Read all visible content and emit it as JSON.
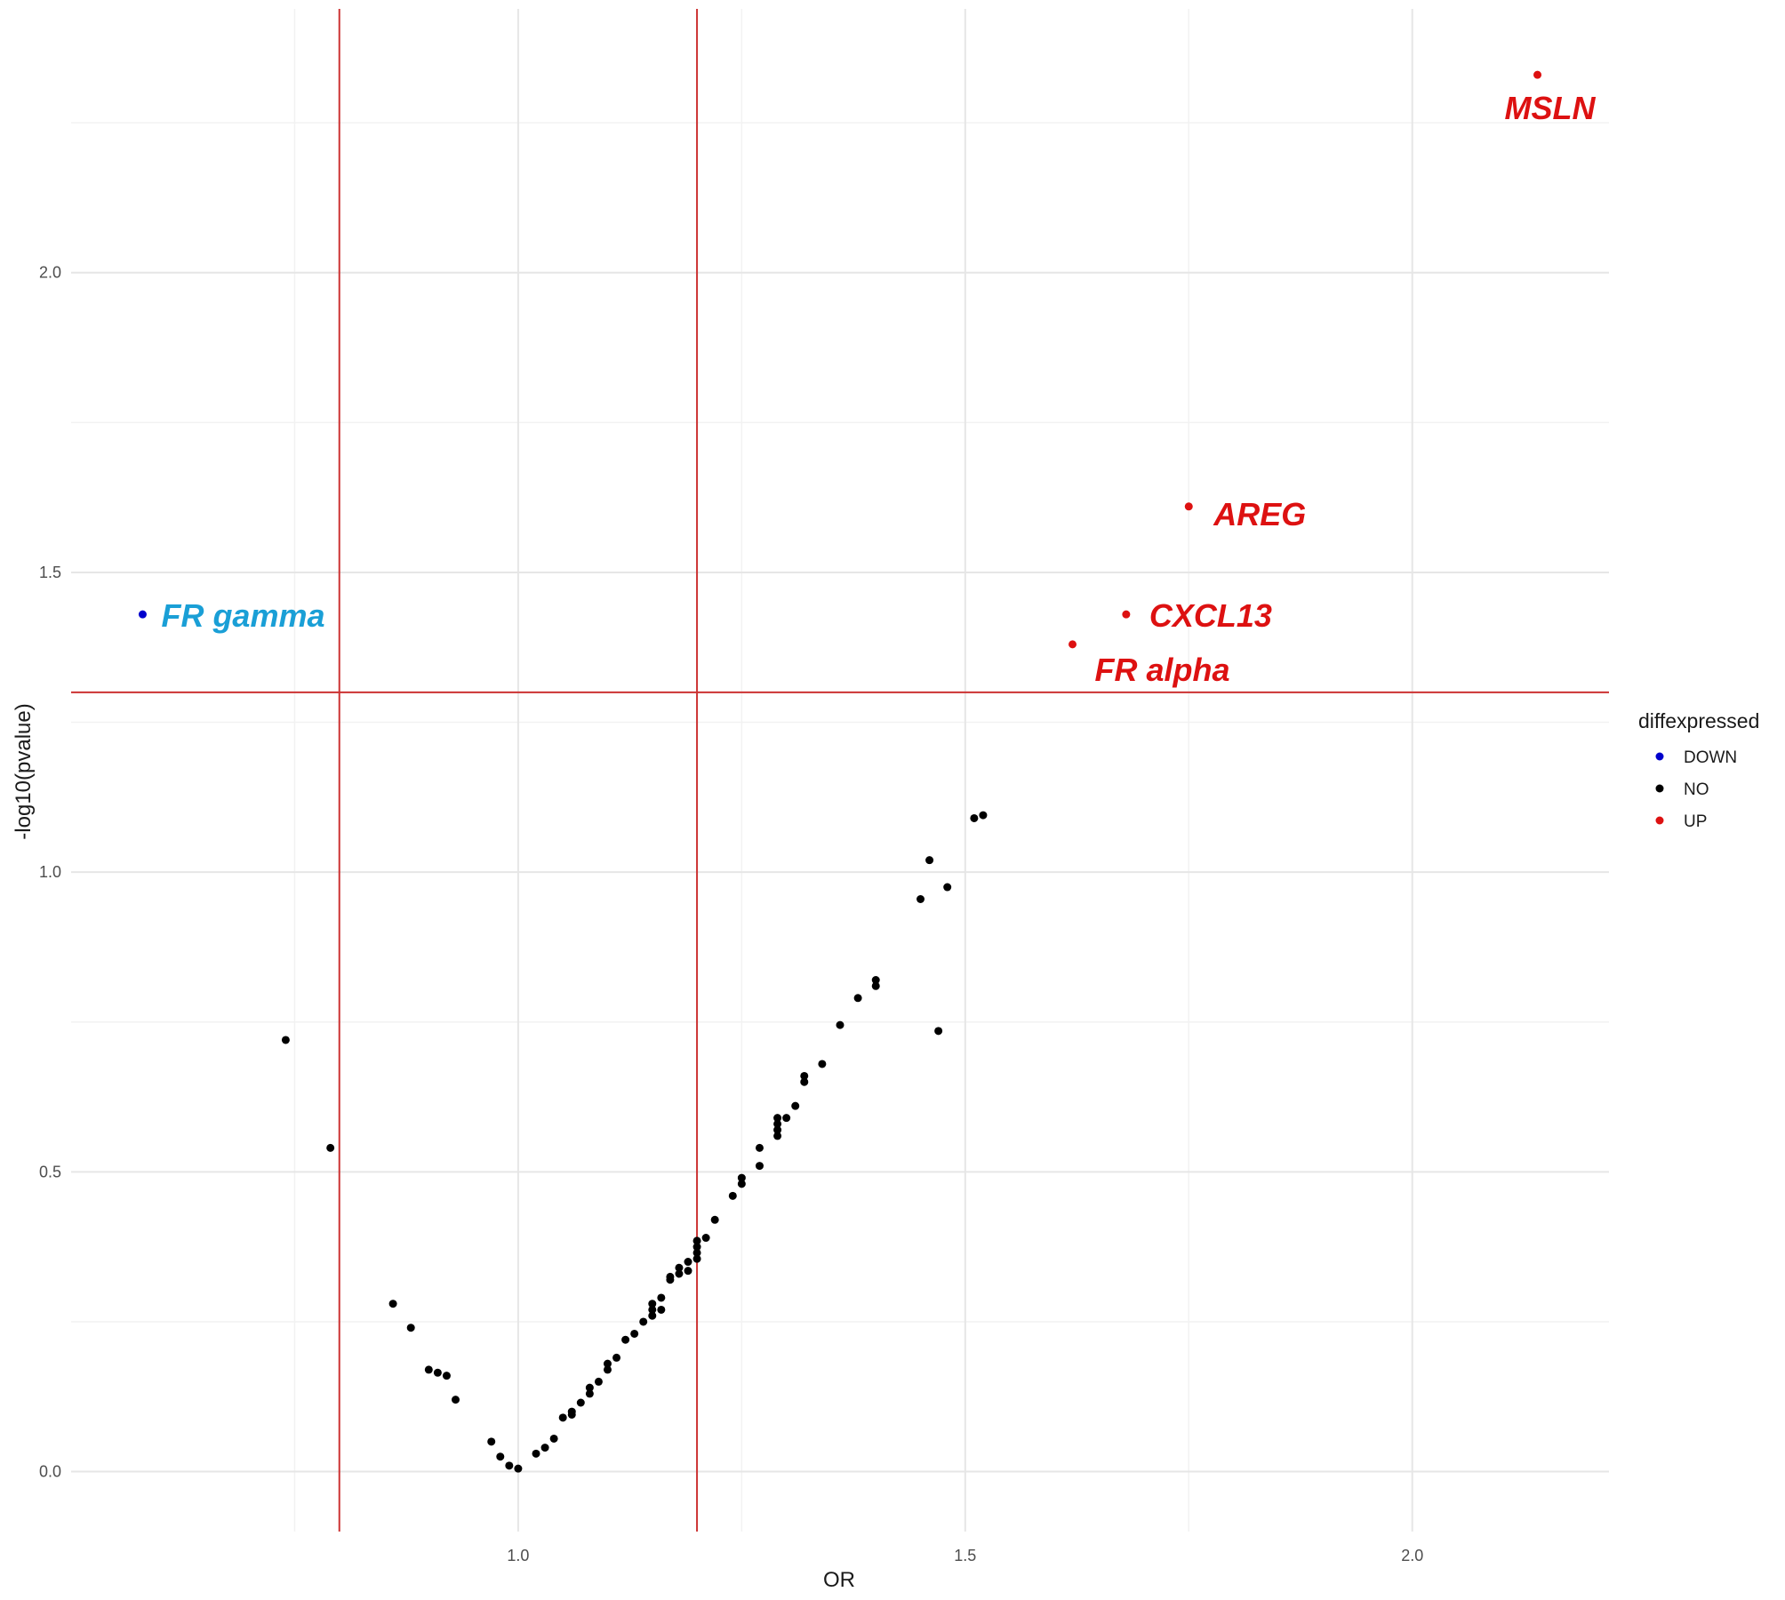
{
  "chart_data": {
    "type": "scatter",
    "title": "",
    "xlabel": "OR",
    "ylabel": "-log10(pvalue)",
    "xlim": [
      0.5,
      2.22
    ],
    "ylim": [
      -0.1,
      2.44
    ],
    "x_ticks": [
      1.0,
      1.5,
      2.0
    ],
    "x_tick_labels": [
      "1.0",
      "1.5",
      "2.0"
    ],
    "y_ticks": [
      0.0,
      0.5,
      1.0,
      1.5,
      2.0
    ],
    "y_tick_labels": [
      "0.0",
      "0.5",
      "1.0",
      "1.5",
      "2.0"
    ],
    "grid": true,
    "threshold_lines": {
      "vertical": [
        0.8,
        1.2
      ],
      "horizontal": [
        1.3
      ],
      "color": "#cc3333"
    },
    "legend": {
      "title": "diffexpressed",
      "position": "right",
      "entries": [
        {
          "name": "DOWN",
          "color": "#0000cc"
        },
        {
          "name": "NO",
          "color": "#000000"
        },
        {
          "name": "UP",
          "color": "#dd1111"
        }
      ]
    },
    "series": [
      {
        "name": "DOWN",
        "color": "#0000cc",
        "points": [
          [
            0.58,
            1.43
          ]
        ]
      },
      {
        "name": "UP",
        "color": "#dd1111",
        "points": [
          [
            2.14,
            2.33
          ],
          [
            1.75,
            1.61
          ],
          [
            1.68,
            1.43
          ],
          [
            1.62,
            1.38
          ]
        ]
      },
      {
        "name": "NO",
        "color": "#000000",
        "points": [
          [
            0.74,
            0.72
          ],
          [
            0.79,
            0.54
          ],
          [
            0.86,
            0.28
          ],
          [
            0.88,
            0.24
          ],
          [
            0.9,
            0.17
          ],
          [
            0.91,
            0.165
          ],
          [
            0.92,
            0.16
          ],
          [
            0.93,
            0.12
          ],
          [
            0.97,
            0.05
          ],
          [
            0.98,
            0.025
          ],
          [
            0.99,
            0.01
          ],
          [
            1.0,
            0.005
          ],
          [
            1.02,
            0.03
          ],
          [
            1.03,
            0.04
          ],
          [
            1.04,
            0.055
          ],
          [
            1.05,
            0.09
          ],
          [
            1.06,
            0.095
          ],
          [
            1.06,
            0.1
          ],
          [
            1.07,
            0.115
          ],
          [
            1.08,
            0.13
          ],
          [
            1.08,
            0.14
          ],
          [
            1.09,
            0.15
          ],
          [
            1.1,
            0.17
          ],
          [
            1.1,
            0.18
          ],
          [
            1.11,
            0.19
          ],
          [
            1.12,
            0.22
          ],
          [
            1.13,
            0.23
          ],
          [
            1.14,
            0.25
          ],
          [
            1.15,
            0.26
          ],
          [
            1.15,
            0.27
          ],
          [
            1.15,
            0.28
          ],
          [
            1.16,
            0.27
          ],
          [
            1.16,
            0.29
          ],
          [
            1.17,
            0.32
          ],
          [
            1.17,
            0.325
          ],
          [
            1.18,
            0.33
          ],
          [
            1.18,
            0.34
          ],
          [
            1.19,
            0.335
          ],
          [
            1.19,
            0.35
          ],
          [
            1.2,
            0.355
          ],
          [
            1.2,
            0.365
          ],
          [
            1.2,
            0.375
          ],
          [
            1.2,
            0.385
          ],
          [
            1.21,
            0.39
          ],
          [
            1.22,
            0.42
          ],
          [
            1.24,
            0.46
          ],
          [
            1.25,
            0.48
          ],
          [
            1.25,
            0.49
          ],
          [
            1.27,
            0.51
          ],
          [
            1.27,
            0.54
          ],
          [
            1.29,
            0.56
          ],
          [
            1.29,
            0.57
          ],
          [
            1.29,
            0.58
          ],
          [
            1.29,
            0.59
          ],
          [
            1.3,
            0.59
          ],
          [
            1.31,
            0.61
          ],
          [
            1.32,
            0.65
          ],
          [
            1.32,
            0.66
          ],
          [
            1.34,
            0.68
          ],
          [
            1.36,
            0.745
          ],
          [
            1.38,
            0.79
          ],
          [
            1.4,
            0.81
          ],
          [
            1.4,
            0.82
          ],
          [
            1.45,
            0.955
          ],
          [
            1.46,
            1.02
          ],
          [
            1.47,
            0.735
          ],
          [
            1.48,
            0.975
          ],
          [
            1.51,
            1.09
          ],
          [
            1.52,
            1.095
          ]
        ]
      }
    ],
    "annotations": [
      {
        "text": "MSLN",
        "x": 2.14,
        "y": 2.33,
        "color": "#dd1111"
      },
      {
        "text": "AREG",
        "x": 1.75,
        "y": 1.61,
        "color": "#dd1111"
      },
      {
        "text": "CXCL13",
        "x": 1.68,
        "y": 1.43,
        "color": "#dd1111"
      },
      {
        "text": "FR alpha",
        "x": 1.62,
        "y": 1.38,
        "color": "#dd1111"
      },
      {
        "text": "FR gamma",
        "x": 0.58,
        "y": 1.43,
        "color": "#1a9fd6"
      }
    ]
  }
}
